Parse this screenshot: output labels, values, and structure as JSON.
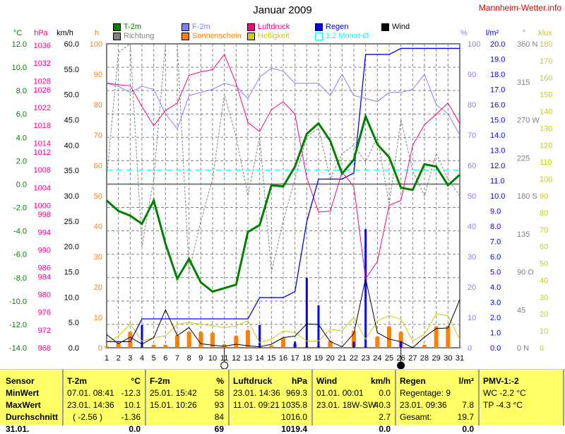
{
  "header": {
    "title": "Januar 2009",
    "brand": "Mannheim-Wetter.info"
  },
  "legend": [
    {
      "label": "T-2m",
      "color": "#008000"
    },
    {
      "label": "F-2m",
      "color": "#8080ff"
    },
    {
      "label": "Luftdruck",
      "color": "#ff0080"
    },
    {
      "label": "Regen",
      "color": "#0000ff"
    },
    {
      "label": "Wind",
      "color": "#000000"
    },
    {
      "label": "Richtung",
      "color": "#808080"
    },
    {
      "label": "Sonnenschein",
      "color": "#ff8000"
    },
    {
      "label": "Helligkeit",
      "color": "#cccc00"
    },
    {
      "label": "1.2 Monat-Ø",
      "color": "#00ffff"
    }
  ],
  "chart_data": {
    "type": "line",
    "title": "Januar 2009",
    "x": [
      1,
      2,
      3,
      4,
      5,
      6,
      7,
      8,
      9,
      10,
      11,
      12,
      13,
      14,
      15,
      16,
      17,
      18,
      19,
      20,
      21,
      22,
      23,
      24,
      25,
      26,
      27,
      28,
      29,
      30,
      31
    ],
    "axes": {
      "temp": {
        "unit": "°C",
        "range": [
          -14,
          12
        ],
        "ticks": [
          "12.0",
          "10.0",
          "8.0",
          "6.0",
          "4.0",
          "2.0",
          "0.0",
          "-2.0",
          "-4.0",
          "-6.0",
          "-8.0",
          "-10.0",
          "-12.0",
          "-14.0"
        ],
        "color": "#008000"
      },
      "pressure": {
        "unit": "hPa",
        "range": [
          968,
          1036.3
        ],
        "ticks": [
          "1036",
          "1032",
          "1028",
          "1026",
          "1022",
          "1018",
          "1014",
          "1012",
          "1008",
          "1004",
          "1000",
          "998",
          "994",
          "990",
          "986",
          "984",
          "980",
          "976",
          "972",
          "968"
        ],
        "color": "#ff0080"
      },
      "wind": {
        "unit": "km/h",
        "range": [
          0,
          60
        ],
        "ticks": [
          "60.0",
          "55.0",
          "50.0",
          "45.0",
          "40.0",
          "35.0",
          "30.0",
          "25.0",
          "20.0",
          "15.0",
          "10.0",
          "5.0",
          "0.0"
        ],
        "color": "#000000"
      },
      "sun": {
        "unit": "h",
        "range": [
          0,
          100
        ],
        "ticks": [
          "100",
          "90",
          "80",
          "70",
          "60",
          "50",
          "40",
          "30",
          "20",
          "10",
          "0"
        ],
        "color": "#ff8000"
      },
      "humidity": {
        "unit": "%",
        "range": [
          0,
          100
        ],
        "ticks": [
          "100",
          "90",
          "80",
          "70",
          "60",
          "50",
          "40",
          "30",
          "20",
          "10",
          "0"
        ],
        "color": "#8080ff"
      },
      "rain": {
        "unit": "l/m²",
        "range": [
          0,
          20
        ],
        "ticks": [
          "20.0",
          "19.0",
          "18.0",
          "17.0",
          "16.0",
          "15.0",
          "14.0",
          "13.0",
          "12.0",
          "11.0",
          "10.0",
          "9.0",
          "8.0",
          "7.0",
          "6.0",
          "5.0",
          "4.0",
          "3.0",
          "2.0",
          "1.0",
          "0.0"
        ],
        "color": "#0000ff"
      },
      "direction": {
        "unit": "°",
        "range": [
          0,
          360
        ],
        "ticks": [
          "360 N",
          "315",
          "270 W",
          "225",
          "180 S",
          "135",
          "90 O",
          "45",
          "0 N"
        ],
        "color": "#808080"
      },
      "brightness": {
        "unit": "klux",
        "range": [
          0,
          180
        ],
        "ticks": [
          "180",
          "170",
          "160",
          "150",
          "140",
          "130",
          "120",
          "110",
          "100",
          "90",
          "80",
          "70",
          "60",
          "50",
          "40",
          "30",
          "20",
          "10",
          "0"
        ],
        "color": "#cccc00"
      }
    },
    "month_average_temp": 1.2,
    "series": [
      {
        "name": "T-2m",
        "axis": "temp",
        "kind": "line",
        "values": [
          -1.4,
          -2.3,
          -2.7,
          -3.4,
          -1.4,
          -5.1,
          -8.1,
          -6.4,
          -8.4,
          -9.2,
          -8.9,
          -8.6,
          -4.1,
          -3.5,
          -0.1,
          -0.2,
          1.5,
          4.3,
          5.2,
          3.7,
          0.9,
          2.1,
          5.8,
          3.4,
          2.3,
          -0.3,
          -0.5,
          1.7,
          1.5,
          -0.1,
          0.8
        ]
      },
      {
        "name": "F-2m",
        "axis": "humidity",
        "kind": "line",
        "values": [
          87,
          86,
          84,
          86,
          85,
          77,
          72,
          83,
          84,
          85,
          87,
          86,
          82,
          89,
          92,
          91,
          87,
          87,
          87,
          83,
          90,
          83,
          82,
          81,
          84,
          84,
          85,
          90,
          80,
          77,
          70
        ]
      },
      {
        "name": "Luftdruck",
        "axis": "pressure",
        "kind": "line",
        "values": [
          1027.5,
          1027.1,
          1026.9,
          1022.2,
          1017.9,
          1021.3,
          1023.0,
          1029.2,
          1030.0,
          1030.5,
          1033.9,
          1027.4,
          1018.6,
          1016.6,
          1021.5,
          1023.3,
          1020.5,
          1006.2,
          998.5,
          998.7,
          1007.5,
          1004.2,
          983.5,
          987.4,
          1000.0,
          1001.1,
          1013.5,
          1018.1,
          1020.5,
          1023.0,
          1018.4
        ]
      },
      {
        "name": "Regen",
        "axis": "rain",
        "kind": "line",
        "values": [
          0.4,
          0.4,
          0.4,
          1.9,
          1.9,
          1.9,
          1.9,
          1.9,
          1.9,
          1.9,
          1.9,
          1.9,
          1.9,
          3.3,
          3.3,
          3.3,
          3.7,
          8.3,
          11.1,
          11.1,
          11.1,
          11.5,
          19.3,
          19.3,
          19.3,
          19.7,
          19.7,
          19.7,
          19.7,
          19.7,
          19.7
        ]
      },
      {
        "name": "Regen",
        "axis": "rain",
        "kind": "bar",
        "values": [
          0,
          0,
          0,
          1.5,
          0,
          0,
          0,
          0,
          0,
          0,
          0,
          0,
          0,
          1.5,
          0,
          0,
          0.4,
          4.6,
          2.8,
          0,
          0,
          0.4,
          7.8,
          0,
          0,
          0.4,
          0,
          0,
          0,
          0,
          0
        ]
      },
      {
        "name": "Wind",
        "axis": "wind",
        "kind": "line",
        "values": [
          2.6,
          0.8,
          2.1,
          0.7,
          2.0,
          7.5,
          2.4,
          4.0,
          0.8,
          0.5,
          0.3,
          0.7,
          0.4,
          0.2,
          0.7,
          2.0,
          2.3,
          4.7,
          4.6,
          1.2,
          0.2,
          2.8,
          13.7,
          3.0,
          1.7,
          1.2,
          0.0,
          2.1,
          3.8,
          3.9,
          9.5
        ]
      },
      {
        "name": "Richtung",
        "axis": "direction",
        "kind": "dashed",
        "values": [
          200,
          350,
          360,
          120,
          200,
          360,
          360,
          90,
          150,
          200,
          300,
          250,
          180,
          250,
          90,
          150,
          200,
          250,
          260,
          200,
          230,
          240,
          220,
          250,
          170,
          270,
          210,
          180,
          230,
          200,
          180
        ]
      },
      {
        "name": "Sonnenschein",
        "axis": "sun",
        "kind": "bar",
        "values": [
          0.5,
          1.6,
          5.3,
          0.3,
          1.0,
          1.0,
          4.2,
          5.3,
          5.3,
          5.0,
          1.2,
          4.0,
          5.9,
          0.2,
          0.8,
          3.3,
          1.3,
          0.5,
          0.5,
          2.4,
          0.3,
          5.6,
          0.5,
          3.7,
          7.0,
          5.3,
          0.2,
          1.0,
          7.0,
          7.2,
          0.3
        ]
      },
      {
        "name": "Helligkeit",
        "axis": "brightness",
        "kind": "line",
        "values": [
          3,
          7,
          14,
          4,
          6,
          7,
          14,
          15,
          14,
          13,
          12,
          13,
          16,
          3,
          5,
          10,
          9,
          4,
          4,
          11,
          10,
          18,
          5,
          16,
          19,
          17,
          4,
          8,
          20,
          19,
          5
        ]
      }
    ],
    "moon_phases": [
      {
        "day": 11,
        "phase": "full-moon"
      },
      {
        "day": 26,
        "phase": "new-moon"
      }
    ],
    "grid": true
  },
  "table": {
    "sensor": {
      "header": "Sensor",
      "rows": [
        "MinWert",
        "MaxWert",
        "Durchschnitt",
        "31.01."
      ]
    },
    "columns": [
      {
        "name": "T-2m",
        "unit": "°C",
        "rows": [
          [
            "07.01.  08:41",
            "-12.3"
          ],
          [
            "23.01.  14:36",
            "10.1"
          ],
          [
            "( -2.56 )",
            "-1.36"
          ],
          [
            "",
            "0.0"
          ]
        ]
      },
      {
        "name": "F-2m",
        "unit": "%",
        "rows": [
          [
            "25.01.  15:42",
            "58"
          ],
          [
            "15.01.  10:26",
            "93"
          ],
          [
            "",
            "84"
          ],
          [
            "",
            "69"
          ]
        ]
      },
      {
        "name": "Luftdruck",
        "unit": "hPa",
        "rows": [
          [
            "23.01.  14:36",
            "969.3"
          ],
          [
            "11.01.  09:21",
            "1035.8"
          ],
          [
            "",
            "1016.0"
          ],
          [
            "",
            "1019.4"
          ]
        ]
      },
      {
        "name": "Wind",
        "unit": "km/h",
        "rows": [
          [
            "01.01.  00:01",
            "0.0"
          ],
          [
            "23.01.  18W-SW",
            "40.3"
          ],
          [
            "",
            "2.7"
          ],
          [
            "",
            "0.0"
          ]
        ]
      },
      {
        "name": "Regen",
        "unit": "l/m²",
        "rows": [
          [
            "Regentage: 9",
            ""
          ],
          [
            "23.01.  09:36",
            "7.8"
          ],
          [
            "Gesamt:",
            "19.7"
          ],
          [
            "",
            "0.0"
          ]
        ]
      },
      {
        "name": "PMV-1:-2",
        "unit": "",
        "rows": [
          [
            "WC -2.2 °C",
            ""
          ],
          [
            "TP -4.3 °C",
            ""
          ],
          [
            "",
            ""
          ],
          [
            "",
            ""
          ]
        ]
      }
    ]
  }
}
